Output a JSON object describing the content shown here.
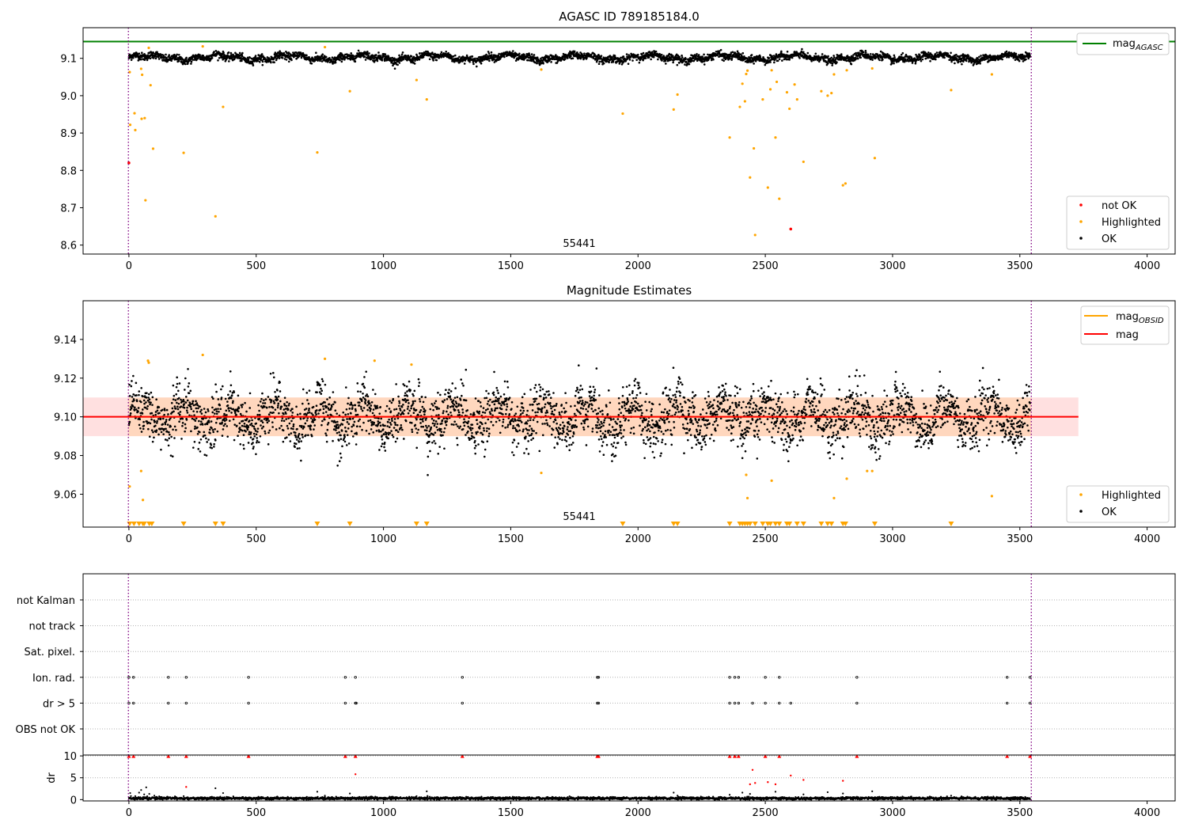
{
  "chart_data": [
    {
      "type": "scatter",
      "title": "AGASC ID 789185184.0",
      "annotation": "55441",
      "xlim": [
        -180,
        4110
      ],
      "ylim": [
        8.576,
        9.182
      ],
      "x_ticks": [
        0,
        500,
        1000,
        1500,
        2000,
        2500,
        3000,
        3500,
        4000
      ],
      "y_ticks": [
        8.6,
        8.7,
        8.8,
        8.9,
        9.0,
        9.1
      ],
      "y_tick_labels": [
        "8.6",
        "8.7",
        "8.8",
        "8.9",
        "9.0",
        "9.1"
      ],
      "reference_line": {
        "name": "mag",
        "subscript": "AGASC",
        "y": 9.145,
        "color": "#008000"
      },
      "observation_bounds": [
        -2,
        3545
      ],
      "legend_top": [
        "mag"
      ],
      "legend_bottom": [
        "not OK",
        "Highlighted",
        "OK"
      ],
      "colors": {
        "ok": "#000000",
        "highlighted": "#ffa500",
        "not_ok": "#ff0000",
        "bounds": "#800080"
      },
      "ok_points": {
        "x_range": [
          0,
          3540
        ],
        "y_mean": 9.102,
        "y_spread": 0.01,
        "count": 3541
      },
      "highlighted_points": [
        [
          3,
          9.063
        ],
        [
          5,
          8.922
        ],
        [
          22,
          8.953
        ],
        [
          25,
          8.908
        ],
        [
          48,
          9.072
        ],
        [
          50,
          8.938
        ],
        [
          52,
          9.056
        ],
        [
          62,
          8.94
        ],
        [
          65,
          8.72
        ],
        [
          78,
          9.128
        ],
        [
          85,
          9.028
        ],
        [
          95,
          8.858
        ],
        [
          215,
          8.847
        ],
        [
          290,
          9.132
        ],
        [
          340,
          8.677
        ],
        [
          370,
          8.97
        ],
        [
          740,
          8.848
        ],
        [
          770,
          9.13
        ],
        [
          868,
          9.012
        ],
        [
          1130,
          9.042
        ],
        [
          1170,
          8.99
        ],
        [
          1620,
          9.07
        ],
        [
          1940,
          8.952
        ],
        [
          2140,
          8.963
        ],
        [
          2155,
          9.003
        ],
        [
          2360,
          8.888
        ],
        [
          2400,
          8.97
        ],
        [
          2410,
          9.032
        ],
        [
          2420,
          8.985
        ],
        [
          2425,
          9.058
        ],
        [
          2430,
          9.067
        ],
        [
          2440,
          8.781
        ],
        [
          2455,
          8.859
        ],
        [
          2460,
          8.627
        ],
        [
          2490,
          8.99
        ],
        [
          2510,
          8.754
        ],
        [
          2520,
          9.017
        ],
        [
          2525,
          9.068
        ],
        [
          2540,
          8.888
        ],
        [
          2545,
          9.037
        ],
        [
          2555,
          8.724
        ],
        [
          2585,
          9.009
        ],
        [
          2595,
          8.965
        ],
        [
          2615,
          9.03
        ],
        [
          2625,
          8.99
        ],
        [
          2650,
          8.823
        ],
        [
          2720,
          9.012
        ],
        [
          2745,
          9.0
        ],
        [
          2760,
          9.007
        ],
        [
          2770,
          9.057
        ],
        [
          2805,
          8.76
        ],
        [
          2815,
          8.765
        ],
        [
          2820,
          9.068
        ],
        [
          2920,
          9.073
        ],
        [
          2930,
          8.833
        ],
        [
          3230,
          9.015
        ],
        [
          3390,
          9.057
        ]
      ],
      "not_ok_points": [
        [
          0,
          8.82
        ],
        [
          2600,
          8.643
        ]
      ]
    },
    {
      "type": "scatter",
      "title": "Magnitude Estimates",
      "annotation": "55441",
      "xlim": [
        -180,
        4110
      ],
      "ylim": [
        9.043,
        9.16
      ],
      "x_ticks": [
        0,
        500,
        1000,
        1500,
        2000,
        2500,
        3000,
        3500,
        4000
      ],
      "y_ticks": [
        9.06,
        9.08,
        9.1,
        9.12,
        9.14
      ],
      "y_tick_labels": [
        "9.06",
        "9.08",
        "9.10",
        "9.12",
        "9.14"
      ],
      "mean_line": {
        "name": "mag",
        "y": 9.1,
        "color": "#ff0000",
        "band": [
          9.09,
          9.11
        ],
        "x_range": [
          -180,
          3730
        ]
      },
      "obsid_line": {
        "name": "mag",
        "subscript": "OBSID",
        "y": 9.1,
        "color": "#ffa500",
        "band": [
          9.09,
          9.11
        ]
      },
      "observation_bounds": [
        -2,
        3545
      ],
      "legend_top": [
        "mag",
        "mag"
      ],
      "legend_bottom": [
        "Highlighted",
        "OK"
      ],
      "ok_points": {
        "x_range": [
          0,
          3540
        ],
        "y_mean": 9.1,
        "y_spread": 0.009,
        "count": 3541
      },
      "highlighted_points": [
        [
          3,
          9.064
        ],
        [
          48,
          9.072
        ],
        [
          55,
          9.057
        ],
        [
          75,
          9.129
        ],
        [
          78,
          9.128
        ],
        [
          290,
          9.132
        ],
        [
          770,
          9.13
        ],
        [
          965,
          9.129
        ],
        [
          1110,
          9.127
        ],
        [
          1620,
          9.071
        ],
        [
          2425,
          9.07
        ],
        [
          2430,
          9.058
        ],
        [
          2525,
          9.067
        ],
        [
          2770,
          9.058
        ],
        [
          2820,
          9.068
        ],
        [
          2900,
          9.072
        ],
        [
          2920,
          9.072
        ],
        [
          3390,
          9.059
        ]
      ],
      "out_of_range_markers": [
        3,
        20,
        40,
        55,
        60,
        80,
        90,
        215,
        340,
        370,
        740,
        868,
        1130,
        1170,
        1940,
        2140,
        2155,
        2360,
        2400,
        2410,
        2420,
        2430,
        2440,
        2460,
        2490,
        2510,
        2520,
        2540,
        2555,
        2585,
        2595,
        2625,
        2650,
        2720,
        2745,
        2760,
        2805,
        2815,
        2930,
        3230
      ]
    },
    {
      "type": "scatter",
      "xlim": [
        -180,
        4110
      ],
      "x_ticks": [
        0,
        500,
        1000,
        1500,
        2000,
        2500,
        3000,
        3500,
        4000
      ],
      "flag_categories": [
        "not Kalman",
        "not track",
        "Sat. pixel.",
        "Ion. rad.",
        "dr > 5",
        "OBS not OK"
      ],
      "flags": {
        "Ion. rad.": [
          0,
          18,
          155,
          225,
          470,
          850,
          890,
          1310,
          1840,
          1845,
          2360,
          2380,
          2395,
          2500,
          2555,
          2860,
          3450,
          3540
        ],
        "dr > 5": [
          0,
          18,
          155,
          225,
          470,
          850,
          890,
          893,
          1310,
          1840,
          1845,
          2360,
          2380,
          2395,
          2450,
          2500,
          2555,
          2600,
          2860,
          3450,
          3540
        ],
        "OBS not OK": [],
        "not Kalman": [],
        "not track": [],
        "Sat. pixel.": []
      },
      "observation_bounds": [
        -2,
        3545
      ]
    },
    {
      "type": "scatter",
      "ylabel": "dr",
      "xlim": [
        -180,
        4110
      ],
      "ylim": [
        -0.3,
        10.2
      ],
      "x_ticks": [
        0,
        500,
        1000,
        1500,
        2000,
        2500,
        3000,
        3500,
        4000
      ],
      "y_ticks": [
        0,
        5,
        10
      ],
      "y_tick_labels": [
        "0",
        "5",
        "10"
      ],
      "ok_points": {
        "x_range": [
          0,
          3540
        ],
        "y_mean": 0.3,
        "y_spread": 0.15,
        "count": 3541
      },
      "scattered_points": [
        [
          5,
          1.5
        ],
        [
          25,
          0.8
        ],
        [
          40,
          1.6
        ],
        [
          48,
          2.2
        ],
        [
          60,
          1.2
        ],
        [
          68,
          2.8
        ],
        [
          80,
          1.3
        ],
        [
          100,
          0.9
        ],
        [
          215,
          0.8
        ],
        [
          340,
          2.6
        ],
        [
          370,
          1.5
        ],
        [
          740,
          1.8
        ],
        [
          770,
          0.9
        ],
        [
          868,
          1.4
        ],
        [
          1130,
          0.8
        ],
        [
          1170,
          1.9
        ],
        [
          2140,
          1.6
        ],
        [
          2155,
          0.9
        ],
        [
          2360,
          1.1
        ],
        [
          2410,
          1.6
        ],
        [
          2440,
          1.3
        ],
        [
          2540,
          1.8
        ],
        [
          2650,
          1.2
        ],
        [
          2745,
          1.7
        ],
        [
          2805,
          1.4
        ],
        [
          2920,
          1.9
        ],
        [
          3230,
          0.9
        ]
      ],
      "red_points": [
        [
          225,
          2.9
        ],
        [
          890,
          5.8
        ],
        [
          2440,
          3.5
        ],
        [
          2450,
          6.8
        ],
        [
          2460,
          3.8
        ],
        [
          2510,
          4.0
        ],
        [
          2540,
          3.5
        ],
        [
          2600,
          5.5
        ],
        [
          2650,
          4.5
        ],
        [
          2805,
          4.3
        ]
      ],
      "clipped_markers": [
        0,
        18,
        155,
        225,
        470,
        850,
        890,
        1310,
        1840,
        1845,
        2360,
        2380,
        2395,
        2500,
        2555,
        2860,
        3450,
        3540
      ],
      "observation_bounds": [
        -2,
        3545
      ]
    }
  ]
}
